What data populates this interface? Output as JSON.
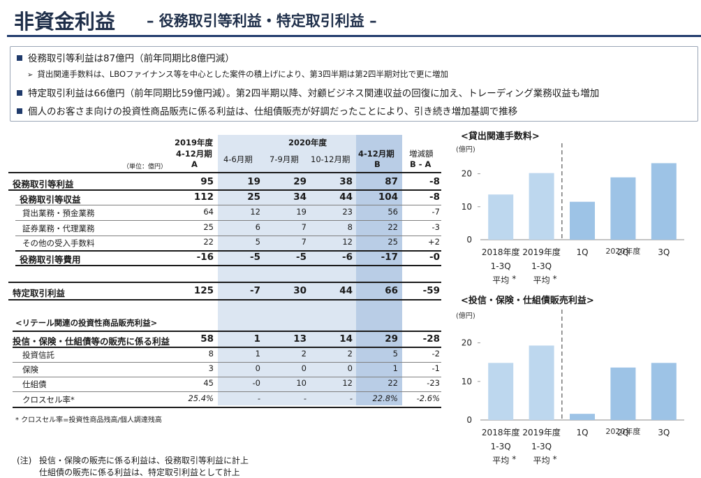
{
  "header": {
    "title": "非資金利益",
    "subtitle": "– 役務取引等利益・特定取引利益 –"
  },
  "summary": {
    "bullets": [
      "役務取引等利益は87億円（前年同期比8億円減）",
      "特定取引利益は66億円（前年同期比59億円減）。第2四半期以降、対顧ビジネス関連収益の回復に加え、トレーディング業務収益も増加",
      "個人のお客さま向けの投資性商品販売に係る利益は、仕組債販売が好調だったことにより、引き続き増加基調で推移"
    ],
    "sub_bullet": "貸出関連手数料は、LBOファイナンス等を中心とした案件の積上げにより、第3四半期は第2四半期対比で更に増加"
  },
  "table": {
    "unit": "（単位：億円）",
    "col_2019": [
      "2019年度",
      "4-12月期",
      "A"
    ],
    "col_2020_group": "2020年度",
    "col_q": [
      "4-6月期",
      "7-9月期",
      "10-12月期"
    ],
    "col_2020_total": [
      "4-12月期",
      "B"
    ],
    "col_diff": [
      "増減額",
      "B - A"
    ],
    "rows": [
      {
        "label": "役務取引等利益",
        "a": "95",
        "q1": "19",
        "q2": "29",
        "q3": "38",
        "b": "87",
        "d": "-8",
        "style": "bold"
      },
      {
        "label": "役務取引等収益",
        "a": "112",
        "q1": "25",
        "q2": "34",
        "q3": "44",
        "b": "104",
        "d": "-8",
        "style": "bold-indent"
      },
      {
        "label": "貸出業務・預金業務",
        "a": "64",
        "q1": "12",
        "q2": "19",
        "q3": "23",
        "b": "56",
        "d": "-7",
        "style": "sub"
      },
      {
        "label": "証券業務・代理業務",
        "a": "25",
        "q1": "6",
        "q2": "7",
        "q3": "8",
        "b": "22",
        "d": "-3",
        "style": "sub"
      },
      {
        "label": "その他の受入手数料",
        "a": "22",
        "q1": "5",
        "q2": "7",
        "q3": "12",
        "b": "25",
        "d": "+2",
        "style": "sub"
      },
      {
        "label": "役務取引等費用",
        "a": "-16",
        "q1": "-5",
        "q2": "-5",
        "q3": "-6",
        "b": "-17",
        "d": "-0",
        "style": "bold-indent"
      }
    ],
    "tokutei": {
      "label": "特定取引利益",
      "a": "125",
      "q1": "-7",
      "q2": "30",
      "q3": "44",
      "b": "66",
      "d": "-59"
    },
    "retail_title": "<リテール関連の投資性商品販売利益>",
    "retail_rows": [
      {
        "label": "投信・保険・仕組債等の販売に係る利益",
        "a": "58",
        "q1": "1",
        "q2": "13",
        "q3": "14",
        "b": "29",
        "d": "-28",
        "style": "bold"
      },
      {
        "label": "投資信託",
        "a": "8",
        "q1": "1",
        "q2": "2",
        "q3": "2",
        "b": "5",
        "d": "-2",
        "style": "sub"
      },
      {
        "label": "保険",
        "a": "3",
        "q1": "0",
        "q2": "0",
        "q3": "0",
        "b": "1",
        "d": "-1",
        "style": "sub"
      },
      {
        "label": "仕組債",
        "a": "45",
        "q1": "-0",
        "q2": "10",
        "q3": "12",
        "b": "22",
        "d": "-23",
        "style": "sub"
      },
      {
        "label": "クロスセル率*",
        "a": "25.4%",
        "q1": "-",
        "q2": "-",
        "q3": "-",
        "b": "22.8%",
        "d": "-2.6%",
        "style": "italic"
      }
    ],
    "note": "* クロスセル率=投資性商品残高/個人調達残高"
  },
  "footnote": {
    "prefix": "(注)",
    "line1": "投信・保険の販売に係る利益は、役務取引等利益に計上",
    "line2": "仕組債の販売に係る利益は、特定取引利益として計上"
  },
  "chart_data": [
    {
      "type": "bar",
      "title": "<貸出関連手数料>",
      "ylabel": "(億円)",
      "ylim": [
        0,
        25
      ],
      "yticks": [
        0,
        10,
        20
      ],
      "categories": [
        "2018年度 1-3Q 平均 *",
        "2019年度 1-3Q 平均 *",
        "1Q",
        "2Q",
        "3Q"
      ],
      "category_lines": [
        [
          "2018年度",
          "1-3Q",
          "平均"
        ],
        [
          "2019年度",
          "1-3Q",
          "平均"
        ],
        [
          "1Q"
        ],
        [
          "2Q"
        ],
        [
          "3Q"
        ]
      ],
      "group_label": "2020年度",
      "values": [
        13.7,
        20.2,
        11.5,
        18.9,
        23.2
      ],
      "colors": [
        "#bdd7ee",
        "#bdd7ee",
        "#9dc3e6",
        "#9dc3e6",
        "#9dc3e6"
      ]
    },
    {
      "type": "bar",
      "title": "<投信・保険・仕組債販売利益>",
      "ylabel": "(億円)",
      "ylim": [
        0,
        25
      ],
      "yticks": [
        0,
        10,
        20
      ],
      "categories": [
        "2018年度 1-3Q 平均 *",
        "2019年度 1-3Q 平均 *",
        "1Q",
        "2Q",
        "3Q"
      ],
      "category_lines": [
        [
          "2018年度",
          "1-3Q",
          "平均"
        ],
        [
          "2019年度",
          "1-3Q",
          "平均"
        ],
        [
          "1Q"
        ],
        [
          "2Q"
        ],
        [
          "3Q"
        ]
      ],
      "group_label": "2020年度",
      "values": [
        14.8,
        19.3,
        1.6,
        13.6,
        14.8
      ],
      "colors": [
        "#bdd7ee",
        "#bdd7ee",
        "#9dc3e6",
        "#9dc3e6",
        "#9dc3e6"
      ]
    }
  ]
}
